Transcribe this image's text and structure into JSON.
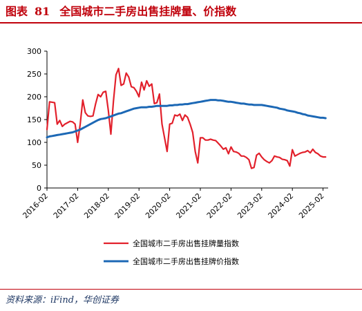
{
  "figure": {
    "label": "图表",
    "number": "81",
    "title": "全国城市二手房出售挂牌量、价指数",
    "source": "资料来源：iFind，华创证券",
    "accent_color": "#c0000b"
  },
  "chart_data": {
    "type": "line",
    "x_start": "2016-02",
    "x_tick_labels": [
      "2016-02",
      "2017-02",
      "2018-02",
      "2019-02",
      "2020-02",
      "2021-02",
      "2022-02",
      "2023-02",
      "2024-02",
      "2025-02"
    ],
    "ylim": [
      0,
      300
    ],
    "y_ticks": [
      0,
      50,
      100,
      150,
      200,
      250,
      300
    ],
    "grid": false,
    "legend_position": "bottom-center",
    "series": [
      {
        "name": "全国城市二手房出售挂牌量指数",
        "color": "#e2202b",
        "values": [
          128,
          189,
          188,
          187,
          140,
          148,
          135,
          140,
          143,
          146,
          145,
          140,
          100,
          140,
          193,
          165,
          158,
          157,
          158,
          184,
          205,
          200,
          210,
          212,
          170,
          118,
          190,
          248,
          262,
          225,
          228,
          252,
          243,
          222,
          220,
          212,
          200,
          232,
          215,
          235,
          223,
          228,
          185,
          187,
          206,
          140,
          110,
          80,
          140,
          142,
          160,
          158,
          162,
          148,
          160,
          155,
          140,
          122,
          80,
          55,
          110,
          110,
          105,
          105,
          107,
          105,
          104,
          98,
          92,
          85,
          88,
          75,
          90,
          80,
          79,
          76,
          70,
          70,
          67,
          62,
          43,
          45,
          72,
          76,
          68,
          62,
          58,
          55,
          60,
          70,
          68,
          67,
          63,
          62,
          60,
          48,
          84,
          70,
          73,
          76,
          78,
          79,
          82,
          77,
          85,
          78,
          75,
          70,
          68,
          68
        ],
        "x_start": "2016-02"
      },
      {
        "name": "全国城市二手房出售挂牌价指数",
        "color": "#1c68b5",
        "values": [
          111,
          113,
          114,
          115,
          116,
          117,
          118,
          119,
          120,
          121,
          122,
          124,
          126,
          128,
          131,
          134,
          137,
          140,
          143,
          146,
          149,
          151,
          152,
          153,
          155,
          157,
          159,
          161,
          163,
          164,
          166,
          168,
          170,
          172,
          174,
          175,
          176,
          177,
          177,
          177,
          178,
          178,
          179,
          180,
          180,
          180,
          180,
          180,
          181,
          181,
          182,
          182,
          183,
          183,
          184,
          184,
          185,
          186,
          187,
          188,
          189,
          190,
          191,
          192,
          193,
          193,
          193,
          192,
          192,
          191,
          190,
          189,
          189,
          188,
          187,
          186,
          185,
          185,
          184,
          183,
          183,
          182,
          182,
          182,
          182,
          181,
          180,
          179,
          178,
          177,
          176,
          174,
          173,
          172,
          170,
          169,
          168,
          167,
          165,
          164,
          162,
          161,
          159,
          158,
          157,
          156,
          155,
          154,
          154,
          153
        ],
        "x_start": "2016-02"
      }
    ]
  }
}
